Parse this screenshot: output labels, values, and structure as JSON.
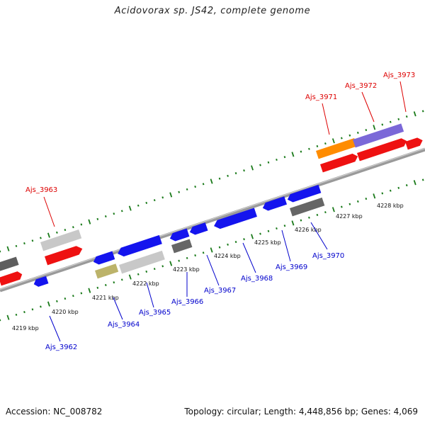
{
  "title": "Acidovorax sp. JS42, complete genome",
  "footer": {
    "accession": "Accession: NC_008782",
    "summary": "Topology: circular; Length: 4,448,856 bp; Genes: 4,069"
  },
  "axis": {
    "ticks": [
      {
        "label": "4219 kbp"
      },
      {
        "label": "4220 kbp"
      },
      {
        "label": "4221 kbp"
      },
      {
        "label": "4222 kbp"
      },
      {
        "label": "4223 kbp"
      },
      {
        "label": "4224 kbp"
      },
      {
        "label": "4225 kbp"
      },
      {
        "label": "4226 kbp"
      },
      {
        "label": "4227 kbp"
      },
      {
        "label": "4228 kbp"
      }
    ]
  },
  "colors": {
    "forward_label": "#dd0000",
    "reverse_label": "#0000cc",
    "tick": "#1a7a1a",
    "backbone": "#8a8a8a"
  },
  "genes": [
    {
      "name": "Ajs_3963",
      "strand": "forward",
      "labeled": true
    },
    {
      "name": "Ajs_3971",
      "strand": "forward",
      "labeled": true
    },
    {
      "name": "Ajs_3972",
      "strand": "forward",
      "labeled": true
    },
    {
      "name": "Ajs_3973",
      "strand": "forward",
      "labeled": true
    },
    {
      "name": "Ajs_3962",
      "strand": "reverse",
      "labeled": true
    },
    {
      "name": "Ajs_3964",
      "strand": "reverse",
      "labeled": true
    },
    {
      "name": "Ajs_3965",
      "strand": "reverse",
      "labeled": true
    },
    {
      "name": "Ajs_3966",
      "strand": "reverse",
      "labeled": true
    },
    {
      "name": "Ajs_3967",
      "strand": "reverse",
      "labeled": true
    },
    {
      "name": "Ajs_3968",
      "strand": "reverse",
      "labeled": true
    },
    {
      "name": "Ajs_3969",
      "strand": "reverse",
      "labeled": true
    },
    {
      "name": "Ajs_3970",
      "strand": "reverse",
      "labeled": true
    }
  ]
}
